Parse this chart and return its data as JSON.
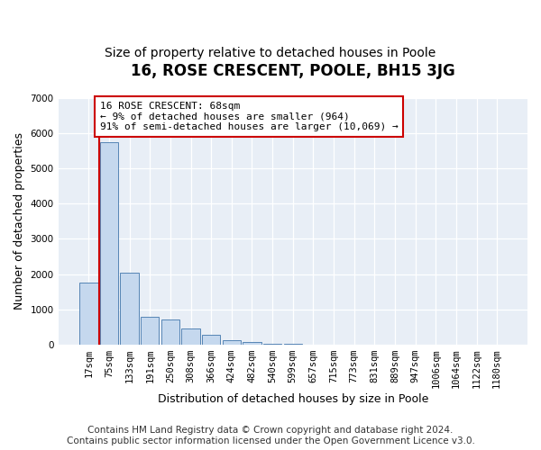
{
  "title": "16, ROSE CRESCENT, POOLE, BH15 3JG",
  "subtitle": "Size of property relative to detached houses in Poole",
  "xlabel": "Distribution of detached houses by size in Poole",
  "ylabel": "Number of detached properties",
  "categories": [
    "17sqm",
    "75sqm",
    "133sqm",
    "191sqm",
    "250sqm",
    "308sqm",
    "366sqm",
    "424sqm",
    "482sqm",
    "540sqm",
    "599sqm",
    "657sqm",
    "715sqm",
    "773sqm",
    "831sqm",
    "889sqm",
    "947sqm",
    "1006sqm",
    "1064sqm",
    "1122sqm",
    "1180sqm"
  ],
  "values": [
    1750,
    5750,
    2050,
    800,
    700,
    450,
    280,
    130,
    60,
    30,
    10,
    0,
    0,
    0,
    0,
    0,
    0,
    0,
    0,
    0,
    0
  ],
  "bar_color": "#c5d8ee",
  "bar_edge_color": "#5585b5",
  "annotation_text": "16 ROSE CRESCENT: 68sqm\n← 9% of detached houses are smaller (964)\n91% of semi-detached houses are larger (10,069) →",
  "annotation_box_facecolor": "#ffffff",
  "annotation_box_edgecolor": "#cc0000",
  "vline_color": "#cc0000",
  "vline_x_index": 0.5,
  "ylim": [
    0,
    7000
  ],
  "yticks": [
    0,
    1000,
    2000,
    3000,
    4000,
    5000,
    6000,
    7000
  ],
  "grid_color": "#d0dce8",
  "background_color": "#e8eef6",
  "footer_line1": "Contains HM Land Registry data © Crown copyright and database right 2024.",
  "footer_line2": "Contains public sector information licensed under the Open Government Licence v3.0.",
  "title_fontsize": 12,
  "subtitle_fontsize": 10,
  "axis_label_fontsize": 9,
  "tick_fontsize": 7.5,
  "annotation_fontsize": 8,
  "footer_fontsize": 7.5
}
